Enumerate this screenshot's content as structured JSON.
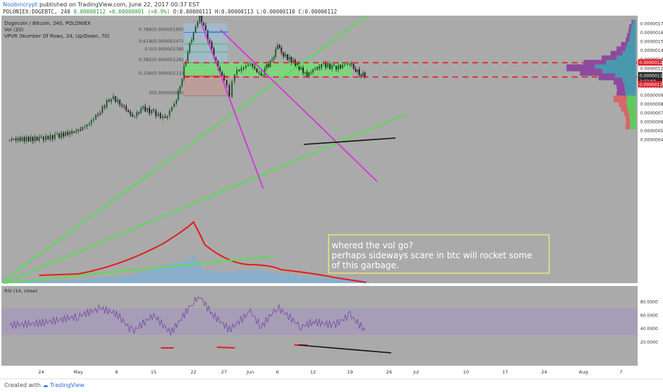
{
  "header": {
    "author": "Noobincrypt",
    "published": "published on TradingView.com, June 22, 2017 00:37 EST",
    "symbol_line": "POLONIEX:DOGEBTC, 240",
    "last": "0.00000112",
    "change": "+0.00000001 (+0.9%)",
    "ohlc": "O:0.00000111 H:0.00000113 L:0.00000110 C:0.00000112"
  },
  "legend": {
    "title": "Dogecoin / Bitcoin, 240, POLONIEX",
    "vol": "Vol (20)",
    "vpvr": "VPVR (Number Of Rows, 24, Up/Down, 70)",
    "rsi": "RSI (14, close)"
  },
  "annotation": {
    "line1": "whered the vol go?",
    "line2": "perhaps sideways scare in btc will rocket some",
    "line3": "of this garbage."
  },
  "price_axis": {
    "ticks": [
      "0.00000170",
      "0.00000160",
      "0.00000150",
      "0.00000140",
      "0.00000130",
      "0.00000120",
      "0.00000110",
      "0.00000100",
      "0.00000090",
      "0.00000080",
      "0.00000070",
      "0.00000060",
      "0.00000050",
      "0.00000040"
    ],
    "labels": [
      {
        "text": "0.00000126",
        "color": "#e0202a"
      },
      {
        "text": "0.00000112",
        "color": "#2b2b2b"
      },
      {
        "text": "2:22:59",
        "color": "#2b2b2b"
      },
      {
        "text": "0.00000110",
        "color": "#e0202a"
      }
    ]
  },
  "rsi_axis": {
    "ticks": [
      "80.0000",
      "60.0000",
      "40.0000",
      "20.0000"
    ]
  },
  "time_axis": {
    "ticks": [
      "24",
      "May",
      "8",
      "15",
      "22",
      "27",
      "Jun",
      "6",
      "12",
      "19",
      "26",
      "Jul",
      "10",
      "17",
      "24",
      "Aug",
      "7"
    ]
  },
  "fib_labels": [
    "0.786(0.00000160)",
    "0.618(0.00000147)",
    "0.5(0.00000138)",
    "0.382(0.00000126)",
    "0.236(0.00000111)",
    "0(0.00000089)"
  ],
  "footer": {
    "created": "Created with",
    "brand": "TradingView"
  },
  "chart_data": {
    "type": "candlestick",
    "title": "Dogecoin / Bitcoin, 240, POLONIEX",
    "x_dates": [
      "Apr 24",
      "May 1",
      "May 8",
      "May 15",
      "May 22",
      "May 27",
      "Jun 1",
      "Jun 6",
      "Jun 12",
      "Jun 19",
      "Jun 26",
      "Jul 1",
      "Jul 10",
      "Jul 17",
      "Jul 24",
      "Aug 1",
      "Aug 7"
    ],
    "ylim": [
      3.5e-07,
      1.75e-06
    ],
    "close_path": [
      [
        "Apr 18",
        4e-07
      ],
      [
        "Apr 24",
        4.1e-07
      ],
      [
        "Apr 27",
        4.4e-07
      ],
      [
        "May 1",
        5e-07
      ],
      [
        "May 3",
        5.8e-07
      ],
      [
        "May 5",
        7.2e-07
      ],
      [
        "May 7",
        8.8e-07
      ],
      [
        "May 9",
        7.9e-07
      ],
      [
        "May 11",
        6.5e-07
      ],
      [
        "May 13",
        7.5e-07
      ],
      [
        "May 15",
        7e-07
      ],
      [
        "May 17",
        6.3e-07
      ],
      [
        "May 19",
        8.5e-07
      ],
      [
        "May 20",
        1.1e-06
      ],
      [
        "May 21",
        1.4e-06
      ],
      [
        "May 22",
        1.6e-06
      ],
      [
        "May 23",
        1.78e-06
      ],
      [
        "May 24",
        1.6e-06
      ],
      [
        "May 25",
        1.4e-06
      ],
      [
        "May 26",
        1.2e-06
      ],
      [
        "May 27",
        1.08e-06
      ],
      [
        "May 28",
        9e-07
      ],
      [
        "May 29",
        1.15e-06
      ],
      [
        "Jun 1",
        1.25e-06
      ],
      [
        "Jun 3",
        1.1e-06
      ],
      [
        "Jun 4",
        1.22e-06
      ],
      [
        "Jun 5",
        1.28e-06
      ],
      [
        "Jun 6",
        1.46e-06
      ],
      [
        "Jun 7",
        1.35e-06
      ],
      [
        "Jun 9",
        1.25e-06
      ],
      [
        "Jun 11",
        1.12e-06
      ],
      [
        "Jun 12",
        1.18e-06
      ],
      [
        "Jun 14",
        1.24e-06
      ],
      [
        "Jun 16",
        1.2e-06
      ],
      [
        "Jun 18",
        1.23e-06
      ],
      [
        "Jun 19",
        1.26e-06
      ],
      [
        "Jun 20",
        1.18e-06
      ],
      [
        "Jun 21",
        1.13e-06
      ],
      [
        "Jun 22",
        1.12e-06
      ]
    ],
    "horizontal_levels": [
      {
        "value": 1.26e-06,
        "style": "red-dashed"
      },
      {
        "value": 1.1e-06,
        "style": "red-dashed"
      }
    ],
    "rsi_ylim": [
      10,
      100
    ],
    "rsi_path": [
      [
        "Apr 18",
        45
      ],
      [
        "Apr 24",
        48
      ],
      [
        "May 1",
        58
      ],
      [
        "May 5",
        70
      ],
      [
        "May 8",
        62
      ],
      [
        "May 11",
        35
      ],
      [
        "May 15",
        60
      ],
      [
        "May 18",
        33
      ],
      [
        "May 22",
        80
      ],
      [
        "May 23",
        88
      ],
      [
        "May 25",
        62
      ],
      [
        "May 28",
        38
      ],
      [
        "Jun 1",
        65
      ],
      [
        "Jun 3",
        42
      ],
      [
        "Jun 6",
        72
      ],
      [
        "Jun 10",
        42
      ],
      [
        "Jun 12",
        50
      ],
      [
        "Jun 16",
        45
      ],
      [
        "Jun 19",
        60
      ],
      [
        "Jun 22",
        34
      ]
    ],
    "vpvr_rows": [
      {
        "price": 1.7e-06,
        "up": 4,
        "down": 2
      },
      {
        "price": 1.65e-06,
        "up": 6,
        "down": 3
      },
      {
        "price": 1.6e-06,
        "up": 7,
        "down": 3
      },
      {
        "price": 1.55e-06,
        "up": 8,
        "down": 4
      },
      {
        "price": 1.5e-06,
        "up": 9,
        "down": 5
      },
      {
        "price": 1.45e-06,
        "up": 12,
        "down": 8
      },
      {
        "price": 1.4e-06,
        "up": 14,
        "down": 12
      },
      {
        "price": 1.35e-06,
        "up": 18,
        "down": 16
      },
      {
        "price": 1.3e-06,
        "up": 26,
        "down": 20
      },
      {
        "price": 1.25e-06,
        "up": 40,
        "down": 30
      },
      {
        "price": 1.2e-06,
        "up": 55,
        "down": 38
      },
      {
        "price": 1.15e-06,
        "up": 45,
        "down": 30
      },
      {
        "price": 1.1e-06,
        "up": 28,
        "down": 22
      },
      {
        "price": 1.05e-06,
        "up": 18,
        "down": 12
      },
      {
        "price": 1e-06,
        "up": 16,
        "down": 10
      },
      {
        "price": 9.5e-07,
        "up": 15,
        "down": 10
      },
      {
        "price": 9e-07,
        "up": 14,
        "down": 12
      },
      {
        "price": 8.5e-07,
        "up": 12,
        "down": 18
      },
      {
        "price": 8e-07,
        "up": 13,
        "down": 10
      },
      {
        "price": 7.5e-07,
        "up": 12,
        "down": 8
      },
      {
        "price": 7e-07,
        "up": 10,
        "down": 6
      },
      {
        "price": 6.5e-07,
        "up": 9,
        "down": 5
      },
      {
        "price": 6e-07,
        "up": 8,
        "down": 5
      },
      {
        "price": 5.5e-07,
        "up": 8,
        "down": 6
      }
    ]
  }
}
